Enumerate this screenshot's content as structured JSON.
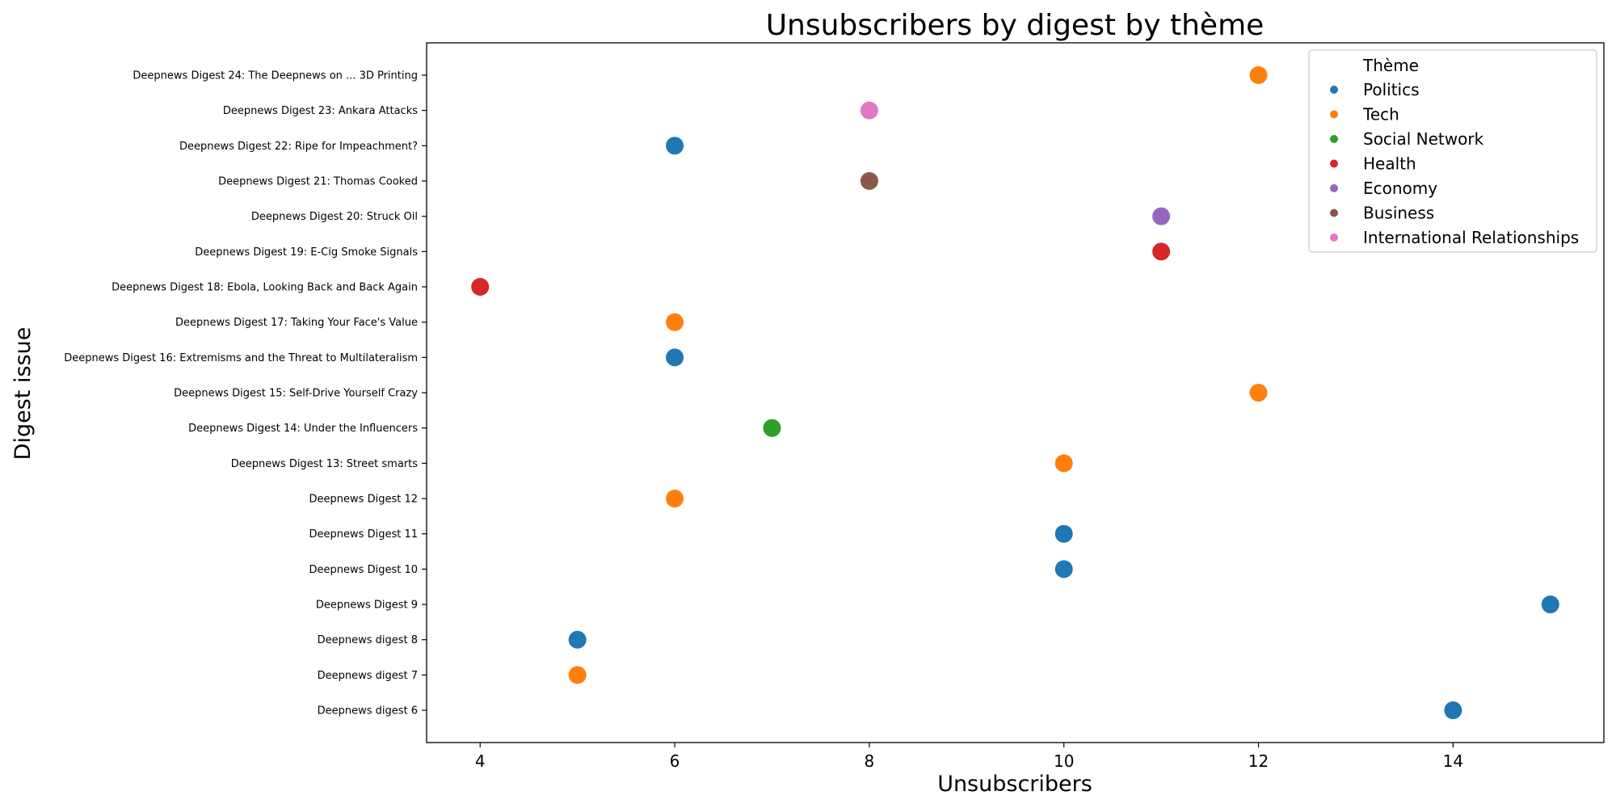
{
  "chart_data": {
    "type": "scatter",
    "title": "Unsubscribers by digest by thème",
    "xlabel": "Unsubscribers",
    "ylabel": "Digest issue",
    "xlim": [
      3.45,
      15.55
    ],
    "x_ticks": [
      4,
      6,
      8,
      10,
      12,
      14
    ],
    "grid": false,
    "legend": {
      "title": "Thème",
      "placement": "top-right",
      "entries": [
        "Politics",
        "Tech",
        "Social Network",
        "Health",
        "Economy",
        "Business",
        "International Relationships"
      ]
    },
    "colors": {
      "Politics": "#1f77b4",
      "Tech": "#ff7f0e",
      "Social Network": "#2ca02c",
      "Health": "#d62728",
      "Economy": "#9467bd",
      "Business": "#8c564b",
      "International Relationships": "#e377c2"
    },
    "categories": [
      "Deepnews Digest 24: The Deepnews on ... 3D Printing",
      "Deepnews Digest 23: Ankara Attacks",
      "Deepnews Digest 22: Ripe for Impeachment?",
      "Deepnews Digest 21: Thomas Cooked",
      "Deepnews Digest 20: Struck Oil",
      "Deepnews Digest 19: E-Cig Smoke Signals",
      "Deepnews Digest 18: Ebola, Looking Back and Back Again",
      "Deepnews Digest 17: Taking Your Face's Value",
      "Deepnews Digest 16: Extremisms and the Threat to Multilateralism",
      "Deepnews Digest 15: Self-Drive Yourself Crazy",
      "Deepnews Digest 14: Under the Influencers",
      "Deepnews Digest 13: Street smarts",
      "Deepnews Digest 12",
      "Deepnews Digest 11",
      "Deepnews Digest 10",
      "Deepnews Digest 9",
      "Deepnews digest 8",
      "Deepnews digest 7",
      "Deepnews digest 6"
    ],
    "points": [
      {
        "category": "Deepnews Digest 24: The Deepnews on ... 3D Printing",
        "x": 12,
        "theme": "Tech"
      },
      {
        "category": "Deepnews Digest 23: Ankara Attacks",
        "x": 8,
        "theme": "International Relationships"
      },
      {
        "category": "Deepnews Digest 22: Ripe for Impeachment?",
        "x": 6,
        "theme": "Politics"
      },
      {
        "category": "Deepnews Digest 21: Thomas Cooked",
        "x": 8,
        "theme": "Business"
      },
      {
        "category": "Deepnews Digest 20: Struck Oil",
        "x": 11,
        "theme": "Economy"
      },
      {
        "category": "Deepnews Digest 19: E-Cig Smoke Signals",
        "x": 11,
        "theme": "Health"
      },
      {
        "category": "Deepnews Digest 18: Ebola, Looking Back and Back Again",
        "x": 4,
        "theme": "Health"
      },
      {
        "category": "Deepnews Digest 17: Taking Your Face's Value",
        "x": 6,
        "theme": "Tech"
      },
      {
        "category": "Deepnews Digest 16: Extremisms and the Threat to Multilateralism",
        "x": 6,
        "theme": "Politics"
      },
      {
        "category": "Deepnews Digest 15: Self-Drive Yourself Crazy",
        "x": 12,
        "theme": "Tech"
      },
      {
        "category": "Deepnews Digest 14: Under the Influencers",
        "x": 7,
        "theme": "Social Network"
      },
      {
        "category": "Deepnews Digest 13: Street smarts",
        "x": 10,
        "theme": "Tech"
      },
      {
        "category": "Deepnews Digest 12",
        "x": 6,
        "theme": "Tech"
      },
      {
        "category": "Deepnews Digest 11",
        "x": 10,
        "theme": "Politics"
      },
      {
        "category": "Deepnews Digest 10",
        "x": 10,
        "theme": "Politics"
      },
      {
        "category": "Deepnews Digest 9",
        "x": 15,
        "theme": "Politics"
      },
      {
        "category": "Deepnews digest 8",
        "x": 5,
        "theme": "Politics"
      },
      {
        "category": "Deepnews digest 7",
        "x": 5,
        "theme": "Tech"
      },
      {
        "category": "Deepnews digest 6",
        "x": 14,
        "theme": "Politics"
      }
    ]
  }
}
